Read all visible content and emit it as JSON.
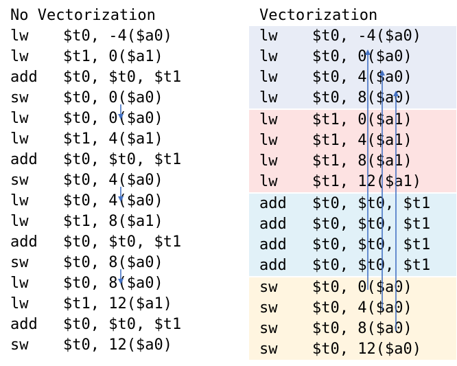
{
  "titles": {
    "left": "No Vectorization",
    "right": "Vectorization"
  },
  "colors": {
    "band_lw_t0": "#e8ecf6",
    "band_lw_t1": "#fde2e2",
    "band_add": "#e1f1f8",
    "band_sw": "#fff5e0",
    "arrow": "#4472c4"
  },
  "left_instructions": [
    {
      "op": "lw",
      "args": "$t0, -4($a0)"
    },
    {
      "op": "lw",
      "args": "$t1, 0($a1)"
    },
    {
      "op": "add",
      "args": "$t0, $t0, $t1"
    },
    {
      "op": "sw",
      "args": "$t0, 0($a0)"
    },
    {
      "op": "lw",
      "args": "$t0, 0($a0)"
    },
    {
      "op": "lw",
      "args": "$t1, 4($a1)"
    },
    {
      "op": "add",
      "args": "$t0, $t0, $t1"
    },
    {
      "op": "sw",
      "args": "$t0, 4($a0)"
    },
    {
      "op": "lw",
      "args": "$t0, 4($a0)"
    },
    {
      "op": "lw",
      "args": "$t1, 8($a1)"
    },
    {
      "op": "add",
      "args": "$t0, $t0, $t1"
    },
    {
      "op": "sw",
      "args": "$t0, 8($a0)"
    },
    {
      "op": "lw",
      "args": "$t0, 8($a0)"
    },
    {
      "op": "lw",
      "args": "$t1, 12($a1)"
    },
    {
      "op": "add",
      "args": "$t0, $t0, $t1"
    },
    {
      "op": "sw",
      "args": "$t0, 12($a0)"
    }
  ],
  "right_groups": [
    {
      "color_key": "band_lw_t0",
      "instructions": [
        {
          "op": "lw",
          "args": "$t0, -4($a0)"
        },
        {
          "op": "lw",
          "args": "$t0, 0($a0)"
        },
        {
          "op": "lw",
          "args": "$t0, 4($a0)"
        },
        {
          "op": "lw",
          "args": "$t0, 8($a0)"
        }
      ]
    },
    {
      "color_key": "band_lw_t1",
      "instructions": [
        {
          "op": "lw",
          "args": "$t1, 0($a1)"
        },
        {
          "op": "lw",
          "args": "$t1, 4($a1)"
        },
        {
          "op": "lw",
          "args": "$t1, 8($a1)"
        },
        {
          "op": "lw",
          "args": "$t1, 12($a1)"
        }
      ]
    },
    {
      "color_key": "band_add",
      "instructions": [
        {
          "op": "add",
          "args": "$t0, $t0, $t1"
        },
        {
          "op": "add",
          "args": "$t0, $t0, $t1"
        },
        {
          "op": "add",
          "args": "$t0, $t0, $t1"
        },
        {
          "op": "add",
          "args": "$t0, $t0, $t1"
        }
      ]
    },
    {
      "color_key": "band_sw",
      "instructions": [
        {
          "op": "sw",
          "args": "$t0, 0($a0)"
        },
        {
          "op": "sw",
          "args": "$t0, 4($a0)"
        },
        {
          "op": "sw",
          "args": "$t0, 8($a0)"
        },
        {
          "op": "sw",
          "args": "$t0, 12($a0)"
        }
      ]
    }
  ],
  "dependencies": {
    "left": [
      {
        "from_line": 3,
        "to_line": 4
      },
      {
        "from_line": 7,
        "to_line": 8
      },
      {
        "from_line": 11,
        "to_line": 12
      }
    ],
    "right": [
      {
        "from_line": 12,
        "to_line": 1
      },
      {
        "from_line": 13,
        "to_line": 2
      },
      {
        "from_line": 14,
        "to_line": 3
      }
    ]
  }
}
